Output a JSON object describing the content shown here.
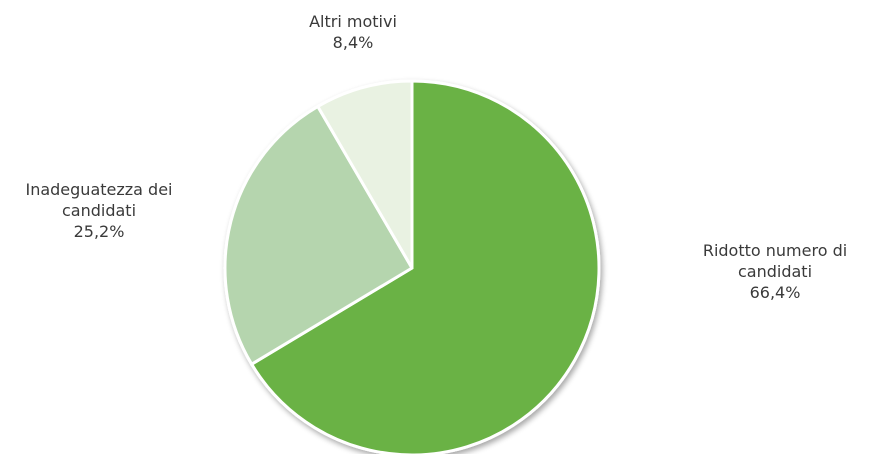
{
  "chart_data": {
    "type": "pie",
    "title": "",
    "slices": [
      {
        "key": "ridotto",
        "label": "Ridotto numero di candidati",
        "value_label": "66,4%",
        "value": 66.4,
        "color": "#6ab245"
      },
      {
        "key": "inadeguatezza",
        "label": "Inadeguatezza dei candidati",
        "value_label": "25,2%",
        "value": 25.2,
        "color": "#b5d5ae"
      },
      {
        "key": "altri",
        "label": "Altri motivi",
        "value_label": "8,4%",
        "value": 8.4,
        "color": "#e9f2e2"
      }
    ],
    "start_angle": "top",
    "direction": "clockwise",
    "separator_color": "#ffffff",
    "shadow": true
  }
}
